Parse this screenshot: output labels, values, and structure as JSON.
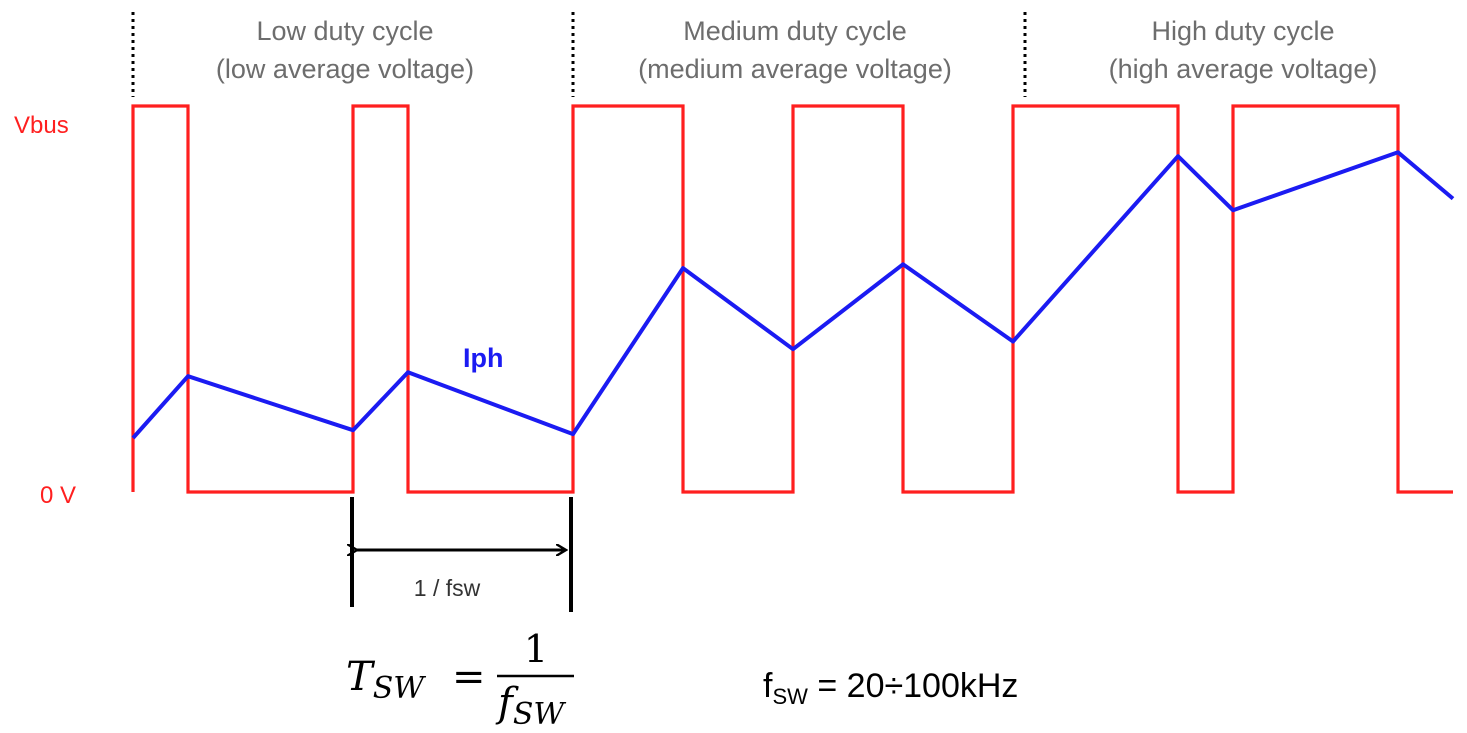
{
  "colors": {
    "voltage": "#ff1f1f",
    "current": "#1b1bf2",
    "header_text": "#6d6d6d",
    "arrow": "#000000"
  },
  "headers": [
    {
      "line1": "Low duty cycle",
      "line2": "(low average voltage)"
    },
    {
      "line1": "Medium duty cycle",
      "line2": "(medium average voltage)"
    },
    {
      "line1": "High duty cycle",
      "line2": "(high average voltage)"
    }
  ],
  "labels": {
    "vbus": "Vbus",
    "zero": "0 V",
    "iph": "Iph",
    "period": "1 / fsw"
  },
  "formula": {
    "lhs_T": "T",
    "lhs_sub": "SW",
    "eq": "=",
    "numerator": "1",
    "den_f": "f",
    "den_sub": "SW"
  },
  "fsw_range": {
    "f": "f",
    "sub": "SW",
    "rest": " = 20÷100kHz"
  },
  "chart_data": {
    "type": "line",
    "series": [
      {
        "name": "Vbus",
        "x": [
          0,
          0,
          0.5,
          0.5,
          2,
          2,
          2.5,
          2.5,
          4,
          4,
          5,
          5,
          6,
          6,
          7,
          7,
          8,
          8,
          9.5,
          9.5,
          10,
          10,
          11.5,
          11.5,
          12
        ],
        "y": [
          0,
          1,
          1,
          0,
          0,
          1,
          1,
          0,
          0,
          1,
          1,
          0,
          0,
          1,
          1,
          0,
          0,
          1,
          1,
          0,
          0,
          1,
          1,
          0,
          0
        ]
      },
      {
        "name": "Iph",
        "x": [
          0,
          0.5,
          2,
          2.5,
          4,
          5,
          6,
          7,
          8,
          9.5,
          10,
          11.5,
          12
        ],
        "y": [
          0.14,
          0.3,
          0.16,
          0.31,
          0.15,
          0.58,
          0.37,
          0.59,
          0.39,
          0.87,
          0.73,
          0.88,
          0.76
        ]
      }
    ]
  }
}
